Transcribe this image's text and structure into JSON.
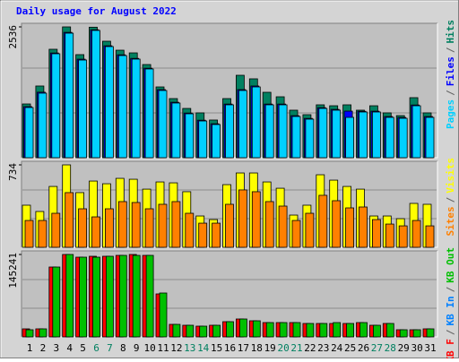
{
  "chart_data": [
    {
      "type": "bar",
      "title": "Daily usage for August 2022",
      "ylim": [
        0,
        2536
      ],
      "yticks": [
        2536
      ],
      "legend_separator": "/",
      "series": [
        {
          "name": "Pages",
          "color": "#00d0ff",
          "values": [
            973,
            1251,
            2015,
            2414,
            1893,
            2467,
            2154,
            1980,
            1911,
            1720,
            1303,
            1060,
            851,
            712,
            643,
            1025,
            1303,
            1372,
            1025,
            1025,
            799,
            747,
            955,
            921,
            782,
            886,
            886,
            782,
            764,
            1007,
            782
          ]
        },
        {
          "name": "Files",
          "color": "#0000ff",
          "values": [
            990,
            1270,
            2030,
            2430,
            1910,
            2480,
            2170,
            1995,
            1925,
            1735,
            1320,
            1075,
            866,
            727,
            658,
            1040,
            1320,
            1390,
            1040,
            1040,
            815,
            762,
            970,
            937,
            903,
            900,
            902,
            798,
            780,
            1022,
            798
          ]
        },
        {
          "name": "Hits",
          "color": "#008060",
          "values": [
            1042,
            1390,
            2102,
            2536,
            1998,
            2530,
            2258,
            2084,
            2032,
            1806,
            1372,
            1146,
            955,
            869,
            730,
            1146,
            1598,
            1529,
            1268,
            1181,
            921,
            834,
            1025,
            1007,
            1025,
            921,
            1007,
            869,
            816,
            1164,
            869
          ]
        }
      ]
    },
    {
      "type": "bar",
      "ylim": [
        0,
        734
      ],
      "yticks": [
        734
      ],
      "legend_separator": "/",
      "series": [
        {
          "name": "Sites",
          "color": "#ff8000",
          "values": [
            239,
            239,
            303,
            487,
            343,
            271,
            343,
            407,
            399,
            343,
            383,
            407,
            303,
            215,
            215,
            383,
            511,
            495,
            407,
            367,
            239,
            303,
            463,
            415,
            351,
            359,
            247,
            207,
            191,
            239,
            191
          ]
        },
        {
          "name": "Visits",
          "color": "#ffff00",
          "values": [
            375,
            319,
            542,
            734,
            487,
            590,
            566,
            614,
            606,
            518,
            582,
            574,
            495,
            279,
            247,
            558,
            662,
            662,
            582,
            526,
            287,
            375,
            646,
            598,
            542,
            518,
            279,
            279,
            255,
            391,
            383
          ]
        }
      ]
    },
    {
      "type": "bar",
      "ylim": [
        0,
        145241
      ],
      "yticks": [
        145241
      ],
      "legend_separator": "/",
      "categories": [
        "1",
        "2",
        "3",
        "4",
        "5",
        "6",
        "7",
        "8",
        "9",
        "10",
        "11",
        "12",
        "13",
        "14",
        "15",
        "16",
        "17",
        "18",
        "19",
        "20",
        "21",
        "22",
        "23",
        "24",
        "25",
        "26",
        "27",
        "28",
        "29",
        "30",
        "31"
      ],
      "category_colors": [
        "#000000",
        "#000000",
        "#000000",
        "#000000",
        "#000000",
        "#008060",
        "#008060",
        "#000000",
        "#000000",
        "#000000",
        "#000000",
        "#000000",
        "#008060",
        "#008060",
        "#000000",
        "#000000",
        "#000000",
        "#000000",
        "#000000",
        "#008060",
        "#008060",
        "#000000",
        "#000000",
        "#000000",
        "#000000",
        "#000000",
        "#008060",
        "#008060",
        "#000000",
        "#000000",
        "#000000"
      ],
      "series": [
        {
          "name": "KB F",
          "color": "#ff0000",
          "values": [
            14208,
            14208,
            123139,
            145241,
            140504,
            142083,
            142083,
            143662,
            145241,
            143662,
            75778,
            22102,
            20524,
            18945,
            20524,
            26838,
            31574,
            28416,
            25259,
            25259,
            25259,
            23681,
            23681,
            23681,
            23681,
            25259,
            20524,
            23681,
            12630,
            12630,
            14208
          ]
        },
        {
          "name": "KB In",
          "color": "#0080ff"
        },
        {
          "name": "KB Out",
          "color": "#00c000",
          "values": [
            12630,
            14208,
            123139,
            145241,
            140504,
            140504,
            142083,
            143662,
            143662,
            143662,
            77357,
            22102,
            20524,
            18945,
            20524,
            26838,
            31574,
            28416,
            25259,
            25259,
            25259,
            23681,
            23681,
            25259,
            23681,
            25259,
            20524,
            23681,
            12630,
            12630,
            14208
          ]
        }
      ]
    }
  ]
}
